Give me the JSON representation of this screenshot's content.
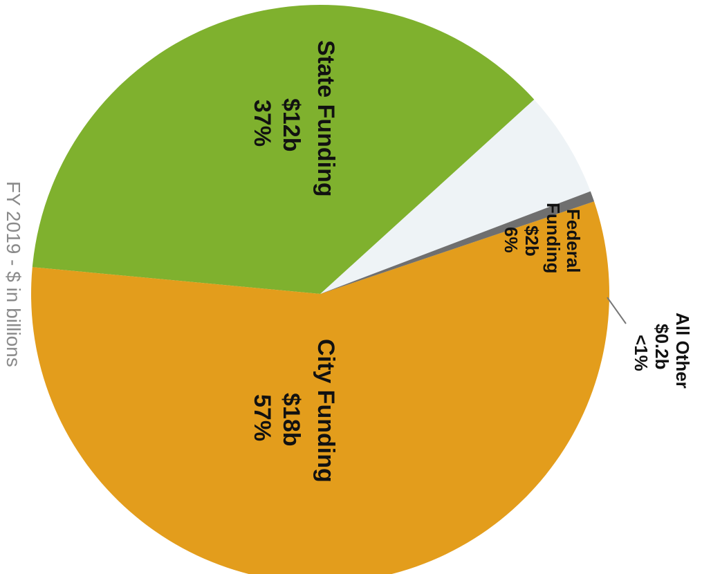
{
  "chart_data": {
    "type": "pie",
    "subtitle": "FY 2019 - $ in billions",
    "slices": [
      {
        "label": "Federal Funding",
        "amount": "$2b",
        "percent_text": "6%",
        "value": 6,
        "color": "#eef3f6"
      },
      {
        "label": "State Funding",
        "amount": "$12b",
        "percent_text": "37%",
        "value": 37,
        "color": "#7fb12e"
      },
      {
        "label": "City Funding",
        "amount": "$18b",
        "percent_text": "57%",
        "value": 57,
        "color": "#e39d1c"
      },
      {
        "label": "All Other",
        "amount": "$0.2b",
        "percent_text": "<1%",
        "value": 0.6,
        "color": "#6f6f6f"
      }
    ],
    "legend": "none"
  }
}
